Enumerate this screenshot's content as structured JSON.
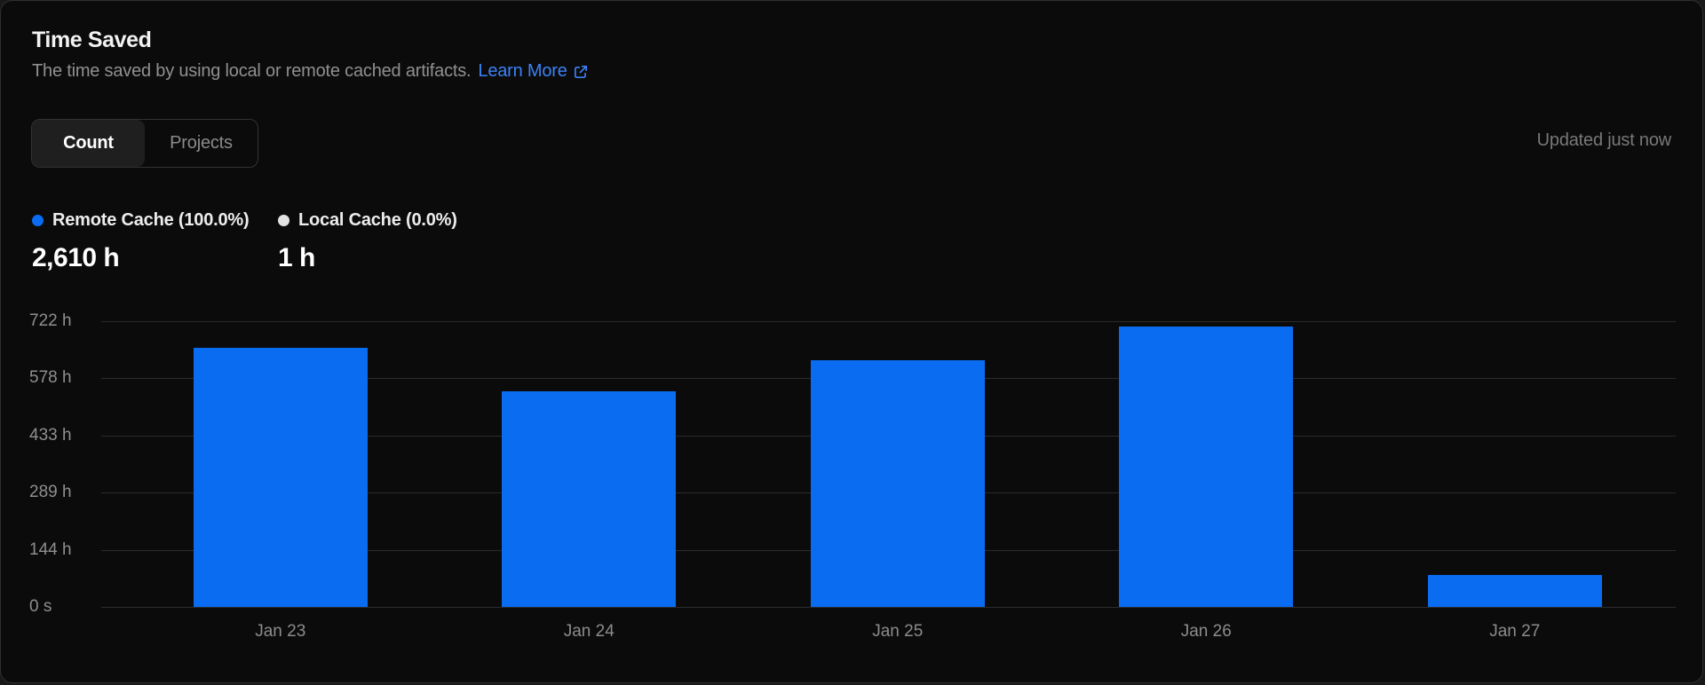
{
  "card": {
    "title": "Time Saved",
    "subtitle": "The time saved by using local or remote cached artifacts.",
    "learn_more_label": "Learn More",
    "updated_label": "Updated just now"
  },
  "tabs": [
    {
      "label": "Count",
      "active": true
    },
    {
      "label": "Projects",
      "active": false
    }
  ],
  "legend": [
    {
      "label": "Remote Cache (100.0%)",
      "value": "2,610 h",
      "color": "#0a6cf1"
    },
    {
      "label": "Local Cache (0.0%)",
      "value": "1 h",
      "color": "#e3e3e3"
    }
  ],
  "colors": {
    "bar": "#0a6cf1",
    "link": "#3b82f6",
    "grid": "#2b2b2b",
    "card_background": "#0b0b0b",
    "card_border": "#2f2f2f"
  },
  "chart_data": {
    "type": "bar",
    "title": "Time Saved",
    "categories": [
      "Jan 23",
      "Jan 24",
      "Jan 25",
      "Jan 26",
      "Jan 27"
    ],
    "series": [
      {
        "name": "Remote Cache",
        "color": "#0a6cf1",
        "values": [
          654,
          544,
          623,
          708,
          81
        ],
        "total_label": "2,610 h",
        "percent": "100.0%"
      },
      {
        "name": "Local Cache",
        "color": "#e3e3e3",
        "values": [
          0,
          0,
          0,
          0,
          0
        ],
        "total_label": "1 h",
        "percent": "0.0%"
      }
    ],
    "unit": "hours",
    "ylim": [
      0,
      722
    ],
    "ytick_labels": [
      "722 h",
      "578 h",
      "433 h",
      "289 h",
      "144 h",
      "0 s"
    ],
    "grid": true,
    "legend_position": "top-left"
  }
}
